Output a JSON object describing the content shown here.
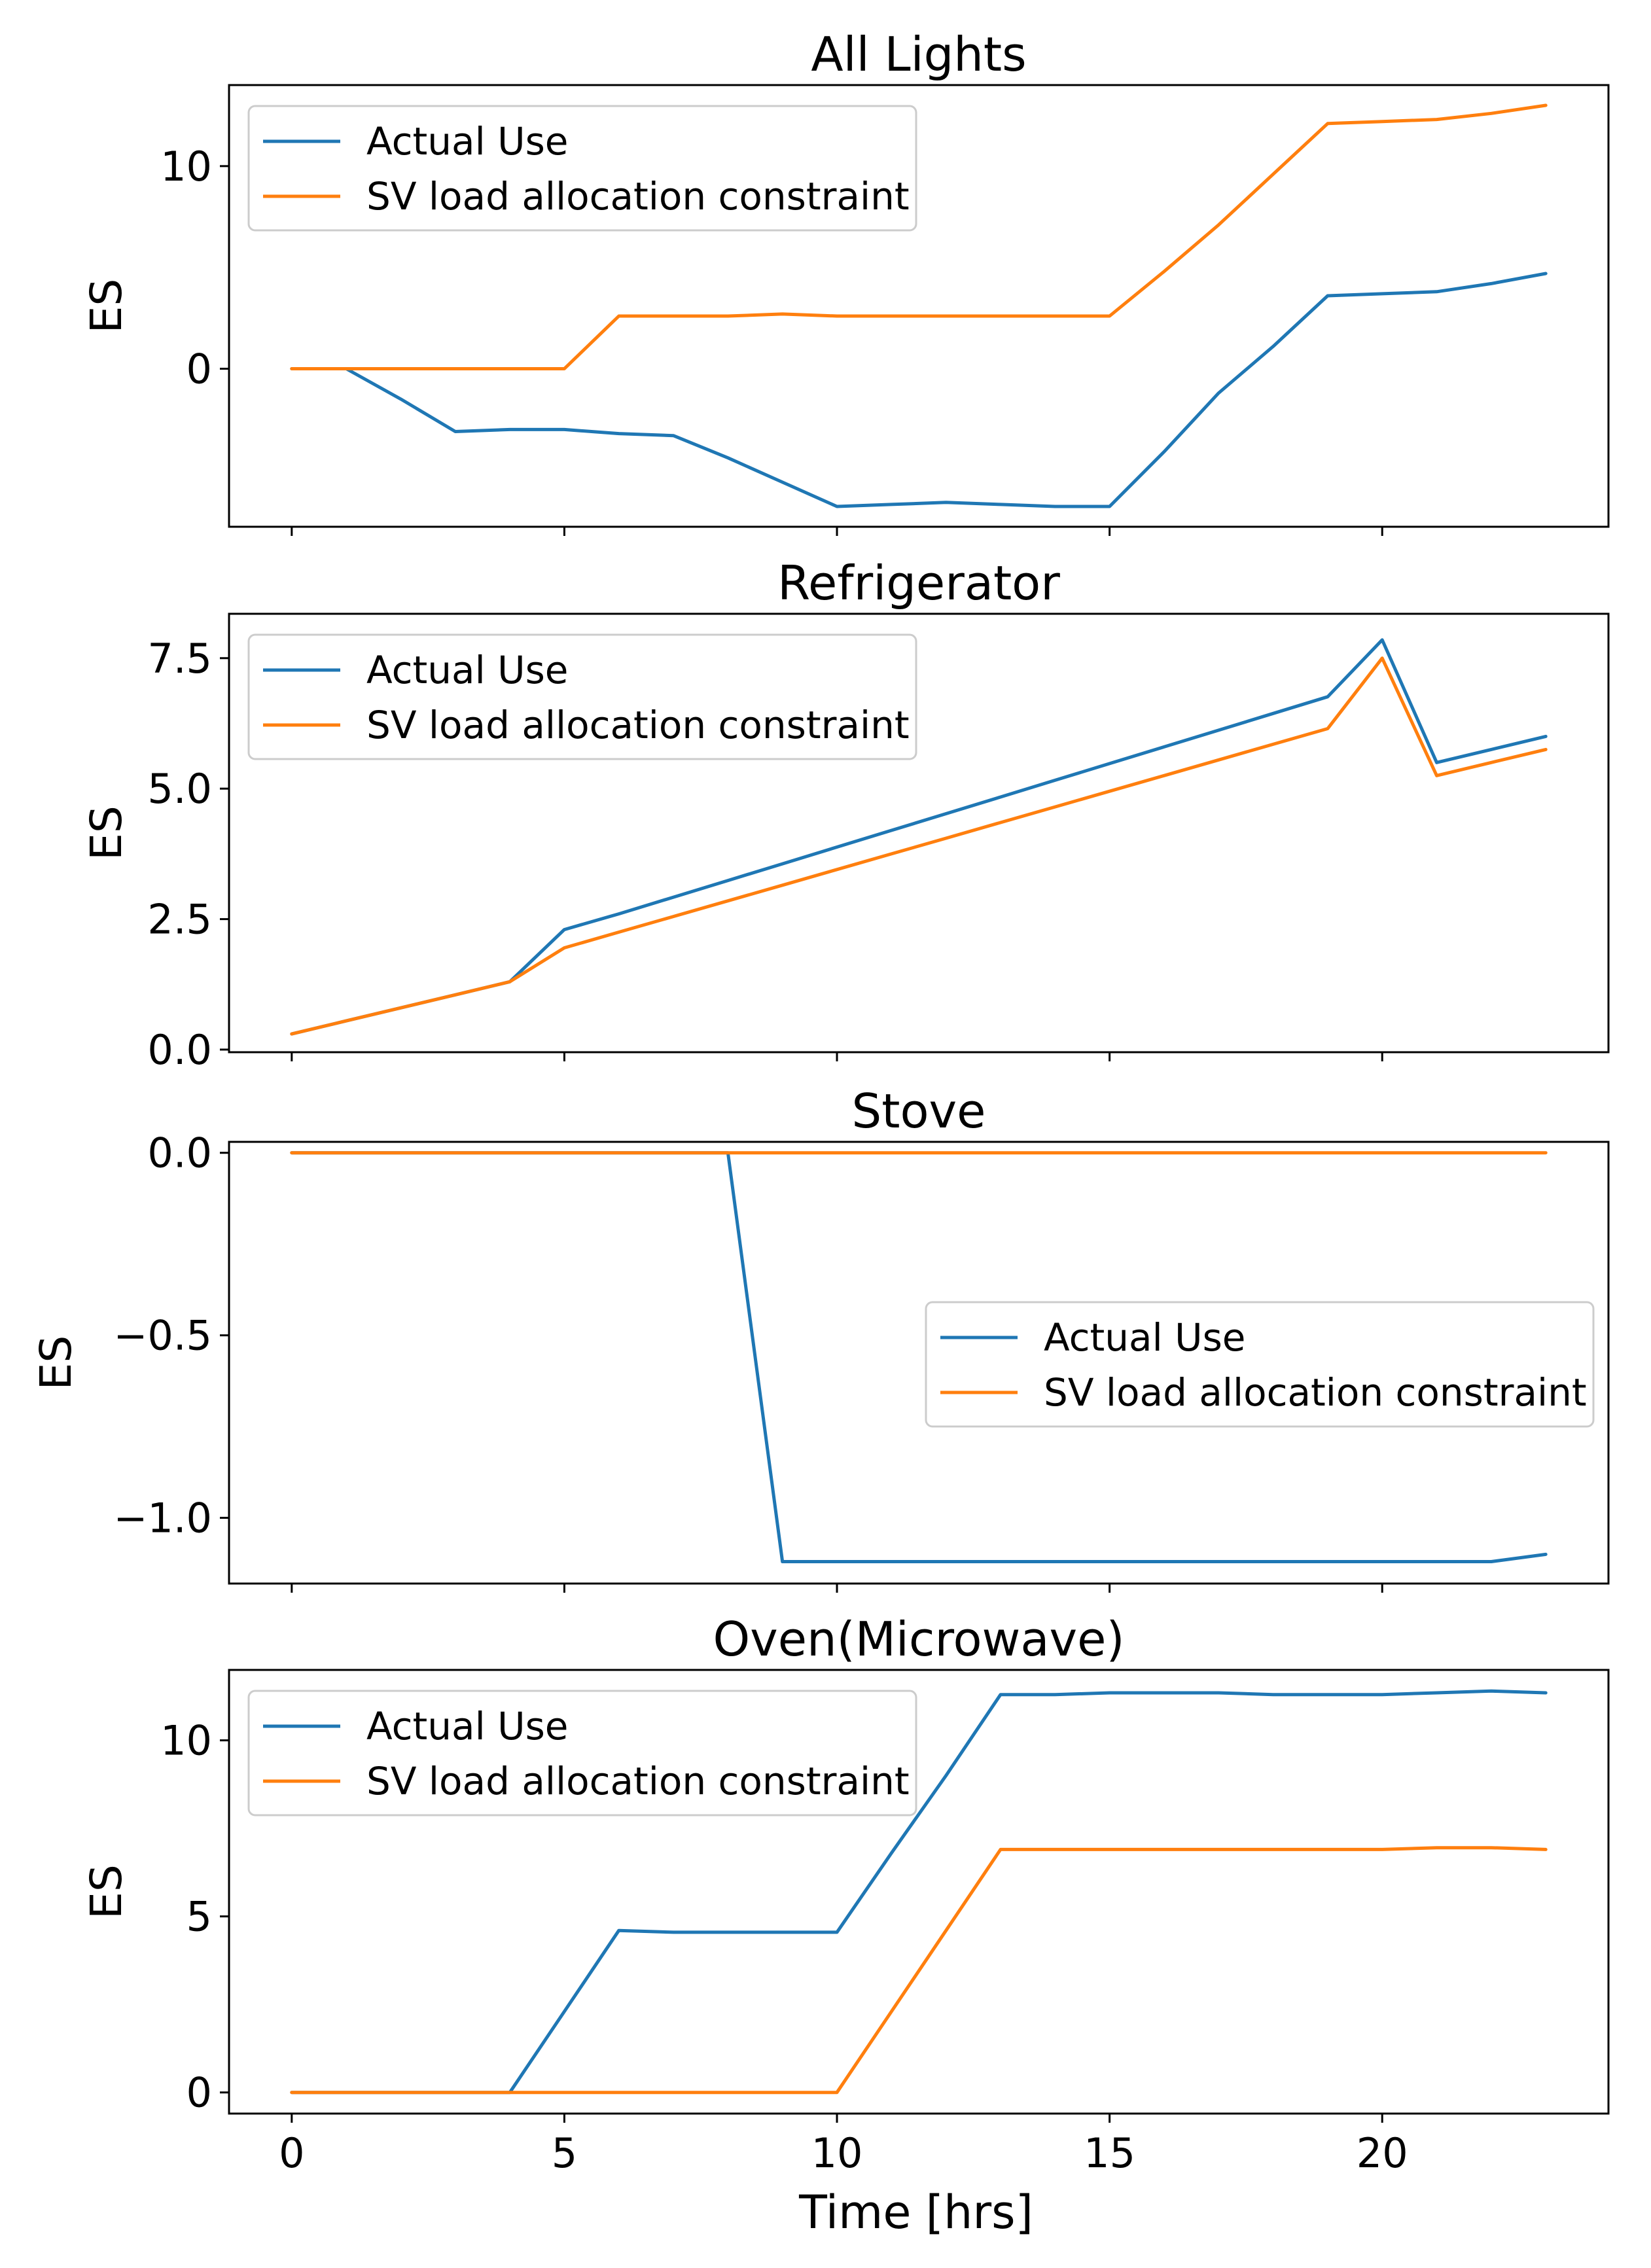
{
  "figure": {
    "xlabel": "Time [hrs]",
    "xticks": [
      0,
      5,
      10,
      15,
      20
    ],
    "xlim": [
      -1.15,
      24.15
    ]
  },
  "colors": {
    "actual": "#1f77b4",
    "constraint": "#ff7f0e"
  },
  "chart_data": [
    {
      "type": "line",
      "title": "All Lights",
      "xlabel": "",
      "ylabel": "ES",
      "ylim": [
        -7.8,
        14.0
      ],
      "yticks": [
        0,
        10
      ],
      "ytick_labels": [
        "0",
        "10"
      ],
      "legend_position": "top-left",
      "x": [
        0,
        1,
        2,
        3,
        4,
        5,
        6,
        7,
        8,
        9,
        10,
        11,
        12,
        13,
        14,
        15,
        16,
        17,
        18,
        19,
        20,
        21,
        22,
        23
      ],
      "series": [
        {
          "name": "Actual Use",
          "color_key": "actual",
          "values": [
            0,
            0,
            -1.5,
            -3.1,
            -3.0,
            -3.0,
            -3.2,
            -3.3,
            -4.4,
            -5.6,
            -6.8,
            -6.7,
            -6.6,
            -6.7,
            -6.8,
            -6.8,
            -4.1,
            -1.2,
            1.1,
            3.6,
            3.7,
            3.8,
            4.2,
            4.7
          ]
        },
        {
          "name": "SV load allocation constraint",
          "color_key": "constraint",
          "values": [
            0,
            0,
            0,
            0,
            0,
            0,
            2.6,
            2.6,
            2.6,
            2.7,
            2.6,
            2.6,
            2.6,
            2.6,
            2.6,
            2.6,
            4.8,
            7.1,
            9.6,
            12.1,
            12.2,
            12.3,
            12.6,
            13.0
          ]
        }
      ]
    },
    {
      "type": "line",
      "title": "Refrigerator",
      "xlabel": "",
      "ylabel": "ES",
      "ylim": [
        -0.05,
        8.35
      ],
      "yticks": [
        0,
        2.5,
        5,
        7.5
      ],
      "ytick_labels": [
        "0.0",
        "2.5",
        "5.0",
        "7.5"
      ],
      "legend_position": "top-left",
      "x": [
        0,
        1,
        2,
        3,
        4,
        5,
        6,
        7,
        8,
        9,
        10,
        11,
        12,
        13,
        14,
        15,
        16,
        17,
        18,
        19,
        20,
        21,
        22,
        23
      ],
      "series": [
        {
          "name": "Actual Use",
          "color_key": "actual",
          "values": [
            0.3,
            0.55,
            0.8,
            1.05,
            1.3,
            2.3,
            2.6,
            2.92,
            3.24,
            3.56,
            3.88,
            4.2,
            4.52,
            4.84,
            5.16,
            5.48,
            5.8,
            6.12,
            6.44,
            6.76,
            7.85,
            5.5,
            5.75,
            6.0
          ]
        },
        {
          "name": "SV load allocation constraint",
          "color_key": "constraint",
          "values": [
            0.3,
            0.55,
            0.8,
            1.05,
            1.3,
            1.95,
            2.25,
            2.55,
            2.85,
            3.15,
            3.45,
            3.75,
            4.05,
            4.35,
            4.65,
            4.95,
            5.25,
            5.55,
            5.85,
            6.15,
            7.5,
            5.25,
            5.5,
            5.75
          ]
        }
      ]
    },
    {
      "type": "line",
      "title": "Stove",
      "xlabel": "",
      "ylabel": "ES",
      "ylim": [
        -1.18,
        0.03
      ],
      "yticks": [
        0,
        -0.5,
        -1.0
      ],
      "ytick_labels": [
        "0.0",
        "−0.5",
        "−1.0"
      ],
      "legend_position": "center-right",
      "x": [
        0,
        1,
        2,
        3,
        4,
        5,
        6,
        7,
        8,
        9,
        10,
        11,
        12,
        13,
        14,
        15,
        16,
        17,
        18,
        19,
        20,
        21,
        22,
        23
      ],
      "series": [
        {
          "name": "Actual Use",
          "color_key": "actual",
          "values": [
            0,
            0,
            0,
            0,
            0,
            0,
            0,
            0,
            0,
            -1.12,
            -1.12,
            -1.12,
            -1.12,
            -1.12,
            -1.12,
            -1.12,
            -1.12,
            -1.12,
            -1.12,
            -1.12,
            -1.12,
            -1.12,
            -1.12,
            -1.1
          ]
        },
        {
          "name": "SV load allocation constraint",
          "color_key": "constraint",
          "values": [
            0,
            0,
            0,
            0,
            0,
            0,
            0,
            0,
            0,
            0,
            0,
            0,
            0,
            0,
            0,
            0,
            0,
            0,
            0,
            0,
            0,
            0,
            0,
            0
          ]
        }
      ]
    },
    {
      "type": "line",
      "title": "Oven(Microwave)",
      "xlabel": "Time [hrs]",
      "ylabel": "ES",
      "ylim": [
        -0.6,
        12.0
      ],
      "yticks": [
        0,
        5,
        10
      ],
      "ytick_labels": [
        "0",
        "5",
        "10"
      ],
      "legend_position": "top-left",
      "x": [
        0,
        1,
        2,
        3,
        4,
        5,
        6,
        7,
        8,
        9,
        10,
        11,
        12,
        13,
        14,
        15,
        16,
        17,
        18,
        19,
        20,
        21,
        22,
        23
      ],
      "series": [
        {
          "name": "Actual Use",
          "color_key": "actual",
          "values": [
            0,
            0,
            0,
            0,
            0,
            2.3,
            4.6,
            4.55,
            4.55,
            4.55,
            4.55,
            6.8,
            9.0,
            11.3,
            11.3,
            11.35,
            11.35,
            11.35,
            11.3,
            11.3,
            11.3,
            11.35,
            11.4,
            11.35
          ]
        },
        {
          "name": "SV load allocation constraint",
          "color_key": "constraint",
          "values": [
            0,
            0,
            0,
            0,
            0,
            0,
            0,
            0,
            0,
            0,
            0,
            2.3,
            4.6,
            6.9,
            6.9,
            6.9,
            6.9,
            6.9,
            6.9,
            6.9,
            6.9,
            6.95,
            6.95,
            6.9
          ]
        }
      ]
    }
  ]
}
